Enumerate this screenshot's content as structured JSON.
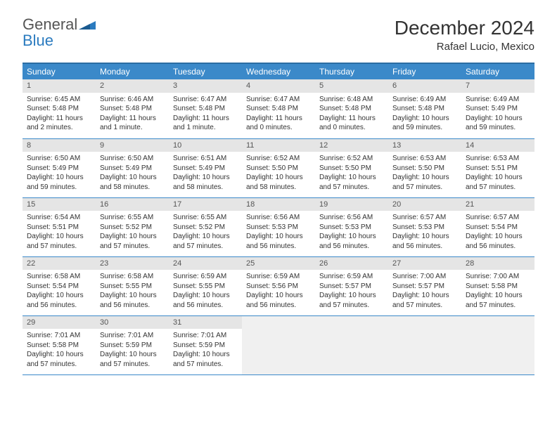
{
  "logo": {
    "text1": "General",
    "text2": "Blue"
  },
  "title": "December 2024",
  "location": "Rafael Lucio, Mexico",
  "colors": {
    "header_bg": "#3b89c9",
    "header_border": "#2b6da3",
    "daynum_bg": "#e5e5e5",
    "cell_border": "#3b89c9",
    "logo_blue": "#2b7bbf",
    "text": "#333333"
  },
  "day_headers": [
    "Sunday",
    "Monday",
    "Tuesday",
    "Wednesday",
    "Thursday",
    "Friday",
    "Saturday"
  ],
  "weeks": [
    [
      {
        "n": "1",
        "sr": "Sunrise: 6:45 AM",
        "ss": "Sunset: 5:48 PM",
        "d1": "Daylight: 11 hours",
        "d2": "and 2 minutes."
      },
      {
        "n": "2",
        "sr": "Sunrise: 6:46 AM",
        "ss": "Sunset: 5:48 PM",
        "d1": "Daylight: 11 hours",
        "d2": "and 1 minute."
      },
      {
        "n": "3",
        "sr": "Sunrise: 6:47 AM",
        "ss": "Sunset: 5:48 PM",
        "d1": "Daylight: 11 hours",
        "d2": "and 1 minute."
      },
      {
        "n": "4",
        "sr": "Sunrise: 6:47 AM",
        "ss": "Sunset: 5:48 PM",
        "d1": "Daylight: 11 hours",
        "d2": "and 0 minutes."
      },
      {
        "n": "5",
        "sr": "Sunrise: 6:48 AM",
        "ss": "Sunset: 5:48 PM",
        "d1": "Daylight: 11 hours",
        "d2": "and 0 minutes."
      },
      {
        "n": "6",
        "sr": "Sunrise: 6:49 AM",
        "ss": "Sunset: 5:48 PM",
        "d1": "Daylight: 10 hours",
        "d2": "and 59 minutes."
      },
      {
        "n": "7",
        "sr": "Sunrise: 6:49 AM",
        "ss": "Sunset: 5:49 PM",
        "d1": "Daylight: 10 hours",
        "d2": "and 59 minutes."
      }
    ],
    [
      {
        "n": "8",
        "sr": "Sunrise: 6:50 AM",
        "ss": "Sunset: 5:49 PM",
        "d1": "Daylight: 10 hours",
        "d2": "and 59 minutes."
      },
      {
        "n": "9",
        "sr": "Sunrise: 6:50 AM",
        "ss": "Sunset: 5:49 PM",
        "d1": "Daylight: 10 hours",
        "d2": "and 58 minutes."
      },
      {
        "n": "10",
        "sr": "Sunrise: 6:51 AM",
        "ss": "Sunset: 5:49 PM",
        "d1": "Daylight: 10 hours",
        "d2": "and 58 minutes."
      },
      {
        "n": "11",
        "sr": "Sunrise: 6:52 AM",
        "ss": "Sunset: 5:50 PM",
        "d1": "Daylight: 10 hours",
        "d2": "and 58 minutes."
      },
      {
        "n": "12",
        "sr": "Sunrise: 6:52 AM",
        "ss": "Sunset: 5:50 PM",
        "d1": "Daylight: 10 hours",
        "d2": "and 57 minutes."
      },
      {
        "n": "13",
        "sr": "Sunrise: 6:53 AM",
        "ss": "Sunset: 5:50 PM",
        "d1": "Daylight: 10 hours",
        "d2": "and 57 minutes."
      },
      {
        "n": "14",
        "sr": "Sunrise: 6:53 AM",
        "ss": "Sunset: 5:51 PM",
        "d1": "Daylight: 10 hours",
        "d2": "and 57 minutes."
      }
    ],
    [
      {
        "n": "15",
        "sr": "Sunrise: 6:54 AM",
        "ss": "Sunset: 5:51 PM",
        "d1": "Daylight: 10 hours",
        "d2": "and 57 minutes."
      },
      {
        "n": "16",
        "sr": "Sunrise: 6:55 AM",
        "ss": "Sunset: 5:52 PM",
        "d1": "Daylight: 10 hours",
        "d2": "and 57 minutes."
      },
      {
        "n": "17",
        "sr": "Sunrise: 6:55 AM",
        "ss": "Sunset: 5:52 PM",
        "d1": "Daylight: 10 hours",
        "d2": "and 57 minutes."
      },
      {
        "n": "18",
        "sr": "Sunrise: 6:56 AM",
        "ss": "Sunset: 5:53 PM",
        "d1": "Daylight: 10 hours",
        "d2": "and 56 minutes."
      },
      {
        "n": "19",
        "sr": "Sunrise: 6:56 AM",
        "ss": "Sunset: 5:53 PM",
        "d1": "Daylight: 10 hours",
        "d2": "and 56 minutes."
      },
      {
        "n": "20",
        "sr": "Sunrise: 6:57 AM",
        "ss": "Sunset: 5:53 PM",
        "d1": "Daylight: 10 hours",
        "d2": "and 56 minutes."
      },
      {
        "n": "21",
        "sr": "Sunrise: 6:57 AM",
        "ss": "Sunset: 5:54 PM",
        "d1": "Daylight: 10 hours",
        "d2": "and 56 minutes."
      }
    ],
    [
      {
        "n": "22",
        "sr": "Sunrise: 6:58 AM",
        "ss": "Sunset: 5:54 PM",
        "d1": "Daylight: 10 hours",
        "d2": "and 56 minutes."
      },
      {
        "n": "23",
        "sr": "Sunrise: 6:58 AM",
        "ss": "Sunset: 5:55 PM",
        "d1": "Daylight: 10 hours",
        "d2": "and 56 minutes."
      },
      {
        "n": "24",
        "sr": "Sunrise: 6:59 AM",
        "ss": "Sunset: 5:55 PM",
        "d1": "Daylight: 10 hours",
        "d2": "and 56 minutes."
      },
      {
        "n": "25",
        "sr": "Sunrise: 6:59 AM",
        "ss": "Sunset: 5:56 PM",
        "d1": "Daylight: 10 hours",
        "d2": "and 56 minutes."
      },
      {
        "n": "26",
        "sr": "Sunrise: 6:59 AM",
        "ss": "Sunset: 5:57 PM",
        "d1": "Daylight: 10 hours",
        "d2": "and 57 minutes."
      },
      {
        "n": "27",
        "sr": "Sunrise: 7:00 AM",
        "ss": "Sunset: 5:57 PM",
        "d1": "Daylight: 10 hours",
        "d2": "and 57 minutes."
      },
      {
        "n": "28",
        "sr": "Sunrise: 7:00 AM",
        "ss": "Sunset: 5:58 PM",
        "d1": "Daylight: 10 hours",
        "d2": "and 57 minutes."
      }
    ],
    [
      {
        "n": "29",
        "sr": "Sunrise: 7:01 AM",
        "ss": "Sunset: 5:58 PM",
        "d1": "Daylight: 10 hours",
        "d2": "and 57 minutes."
      },
      {
        "n": "30",
        "sr": "Sunrise: 7:01 AM",
        "ss": "Sunset: 5:59 PM",
        "d1": "Daylight: 10 hours",
        "d2": "and 57 minutes."
      },
      {
        "n": "31",
        "sr": "Sunrise: 7:01 AM",
        "ss": "Sunset: 5:59 PM",
        "d1": "Daylight: 10 hours",
        "d2": "and 57 minutes."
      },
      null,
      null,
      null,
      null
    ]
  ]
}
